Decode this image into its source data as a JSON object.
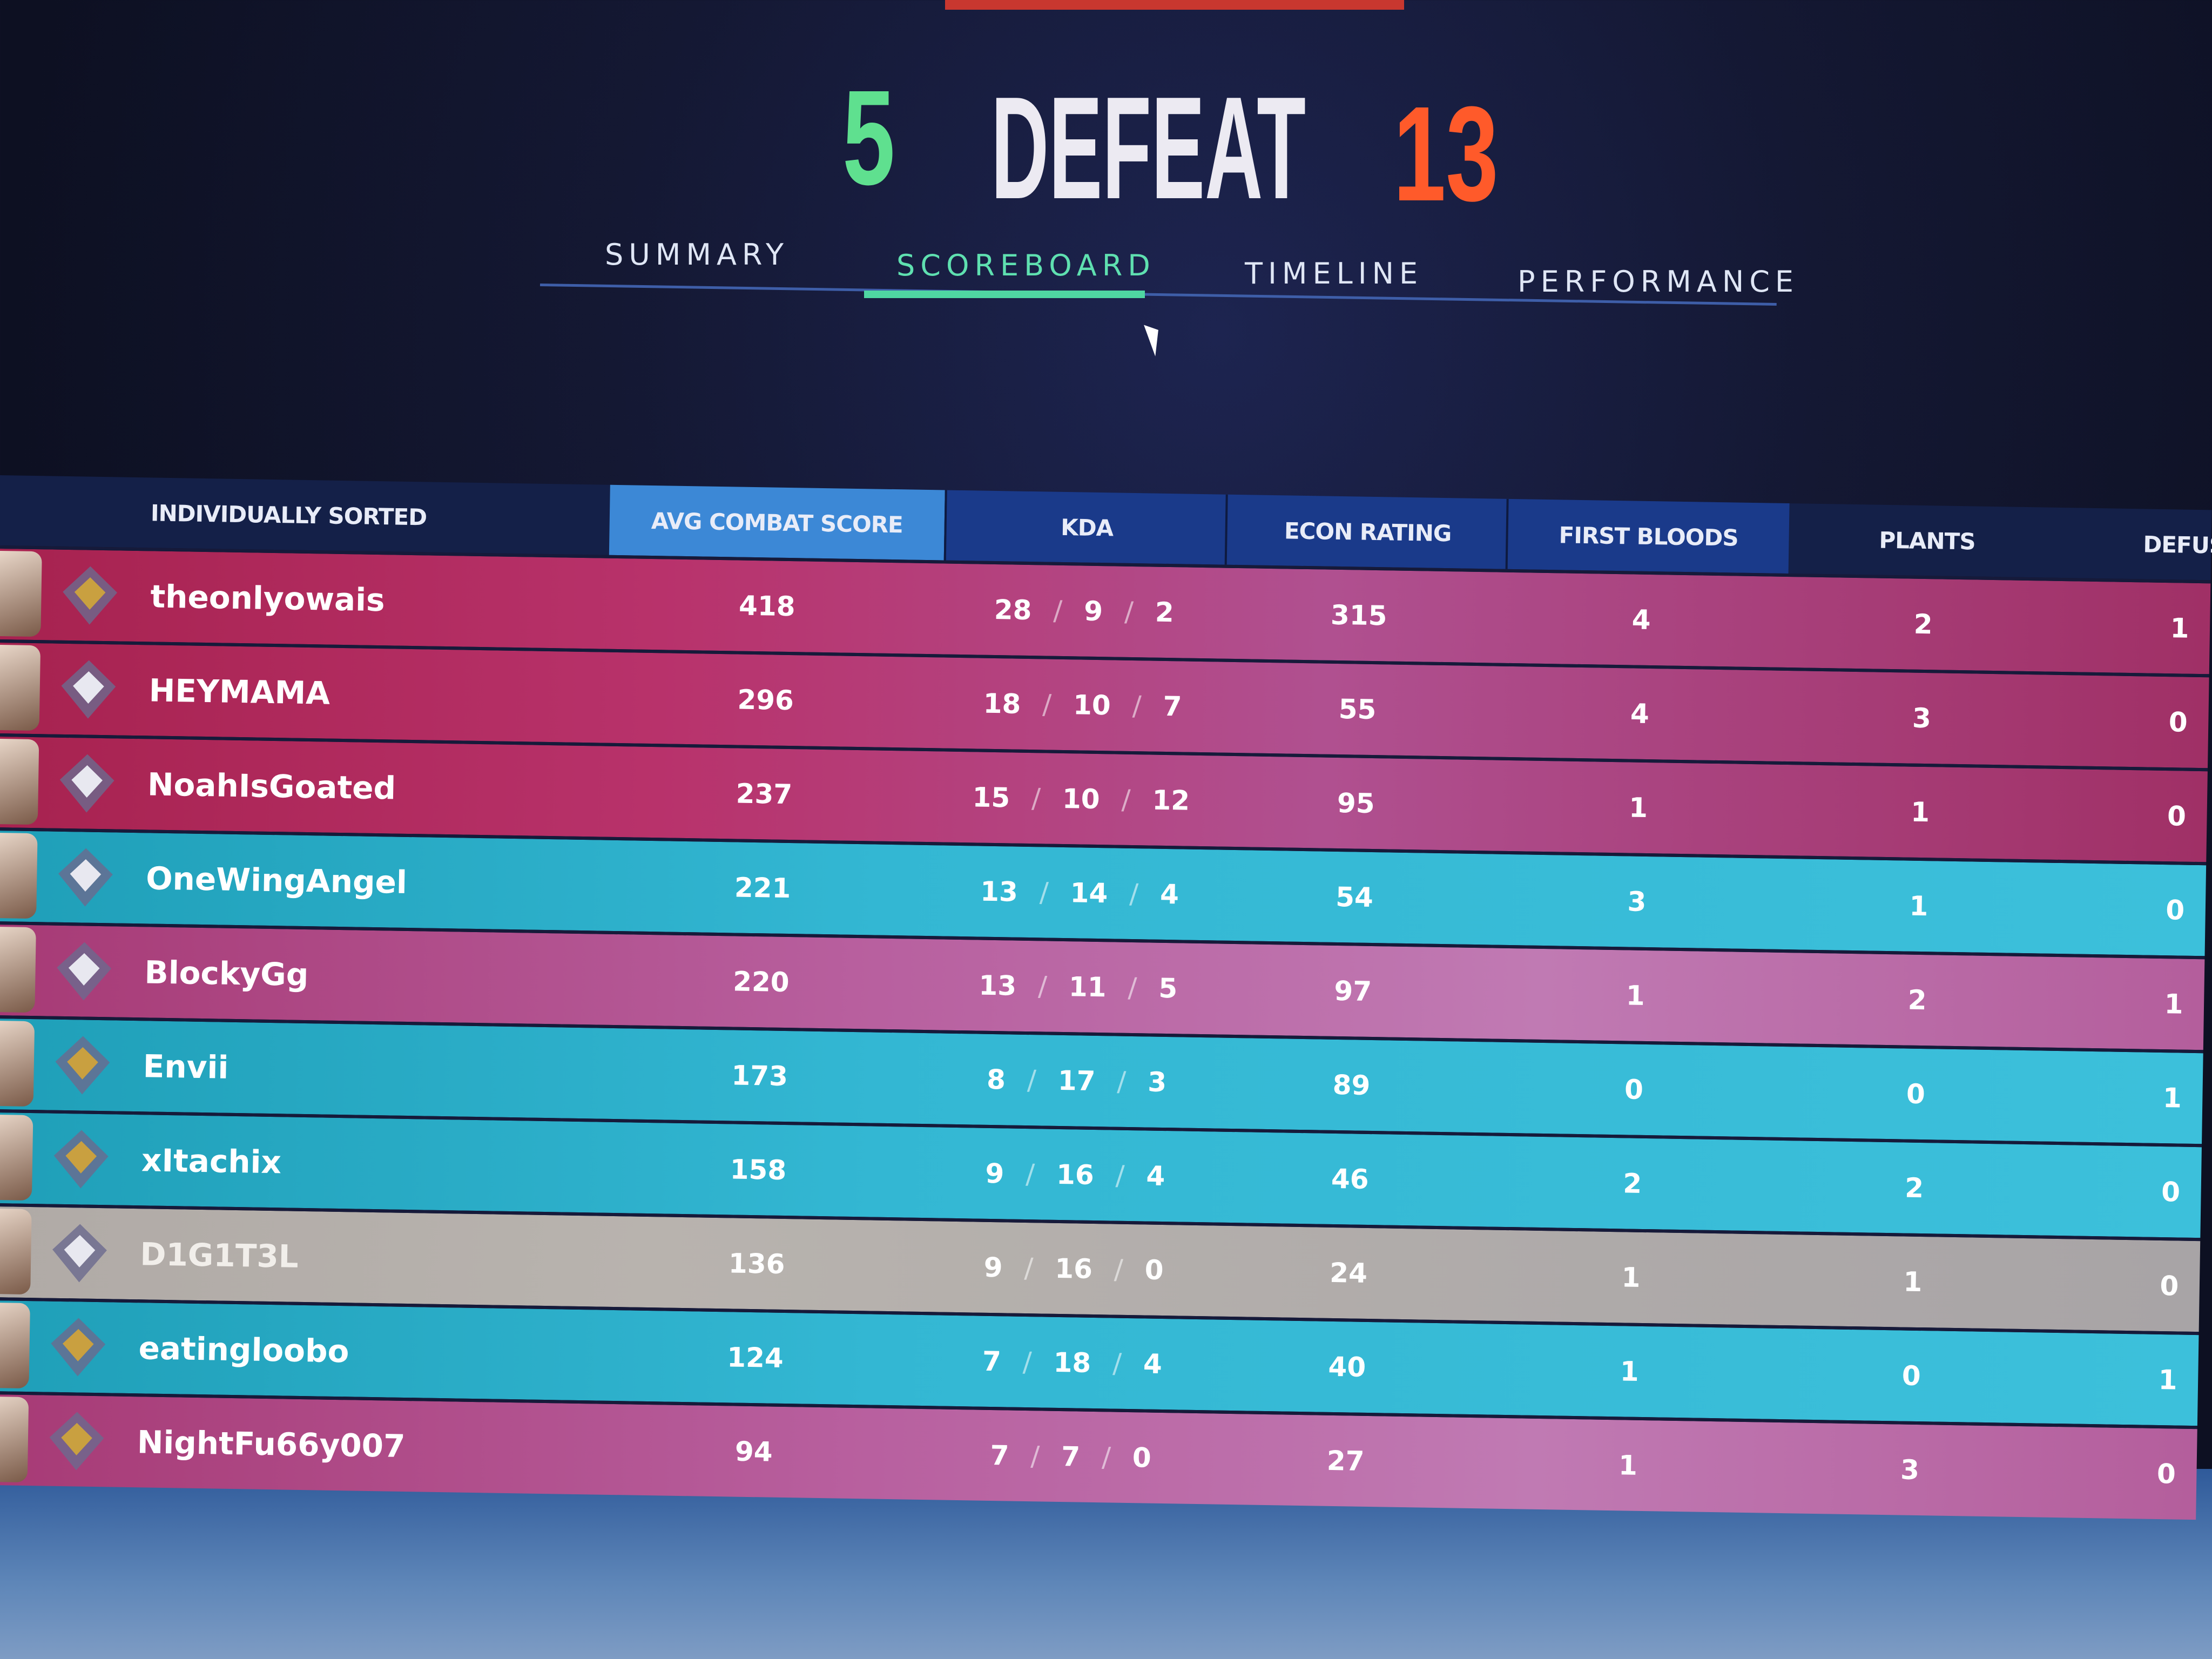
{
  "header": {
    "ally_score": "5",
    "result": "DEFEAT",
    "enemy_score": "13",
    "colors": {
      "ally": "#5fe08f",
      "enemy": "#ff5a2a",
      "active_tab": "#4fd6a2"
    }
  },
  "tabs": [
    {
      "label": "SUMMARY",
      "active": false
    },
    {
      "label": "SCOREBOARD",
      "active": true
    },
    {
      "label": "TIMELINE",
      "active": false
    },
    {
      "label": "PERFORMANCE",
      "active": false
    }
  ],
  "table": {
    "columns": [
      "INDIVIDUALLY SORTED",
      "AVG COMBAT SCORE",
      "KDA",
      "ECON RATING",
      "FIRST BLOODS",
      "PLANTS",
      "DEFUS"
    ],
    "rows": [
      {
        "name": "theonlyowais",
        "team": "red",
        "acs": "418",
        "k": "28",
        "d": "9",
        "a": "2",
        "econ": "315",
        "fb": "4",
        "plants": "2",
        "defuses": "1"
      },
      {
        "name": "HEYMAMA",
        "team": "red",
        "acs": "296",
        "k": "18",
        "d": "10",
        "a": "7",
        "econ": "55",
        "fb": "4",
        "plants": "3",
        "defuses": "0"
      },
      {
        "name": "NoahIsGoated",
        "team": "red",
        "acs": "237",
        "k": "15",
        "d": "10",
        "a": "12",
        "econ": "95",
        "fb": "1",
        "plants": "1",
        "defuses": "0"
      },
      {
        "name": "OneWingAngel",
        "team": "cyan",
        "acs": "221",
        "k": "13",
        "d": "14",
        "a": "4",
        "econ": "54",
        "fb": "3",
        "plants": "1",
        "defuses": "0"
      },
      {
        "name": "BlockyGg",
        "team": "red",
        "acs": "220",
        "k": "13",
        "d": "11",
        "a": "5",
        "econ": "97",
        "fb": "1",
        "plants": "2",
        "defuses": "1"
      },
      {
        "name": "Envii",
        "team": "cyan",
        "acs": "173",
        "k": "8",
        "d": "17",
        "a": "3",
        "econ": "89",
        "fb": "0",
        "plants": "0",
        "defuses": "1"
      },
      {
        "name": "xItachix",
        "team": "cyan",
        "acs": "158",
        "k": "9",
        "d": "16",
        "a": "4",
        "econ": "46",
        "fb": "2",
        "plants": "2",
        "defuses": "0"
      },
      {
        "name": "D1G1T3L",
        "team": "self",
        "acs": "136",
        "k": "9",
        "d": "16",
        "a": "0",
        "econ": "24",
        "fb": "1",
        "plants": "1",
        "defuses": "0"
      },
      {
        "name": "eatingloobo",
        "team": "cyan",
        "acs": "124",
        "k": "7",
        "d": "18",
        "a": "4",
        "econ": "40",
        "fb": "1",
        "plants": "0",
        "defuses": "1"
      },
      {
        "name": "NightFu66y007",
        "team": "red",
        "acs": "94",
        "k": "7",
        "d": "7",
        "a": "0",
        "econ": "27",
        "fb": "1",
        "plants": "3",
        "defuses": "0"
      }
    ],
    "kda_separator": "/",
    "colors": {
      "red_team": "#b8326b",
      "cyan_team": "#33b7d3",
      "self": "#b0aaa6",
      "sorted_column": "#3c88d6"
    }
  }
}
